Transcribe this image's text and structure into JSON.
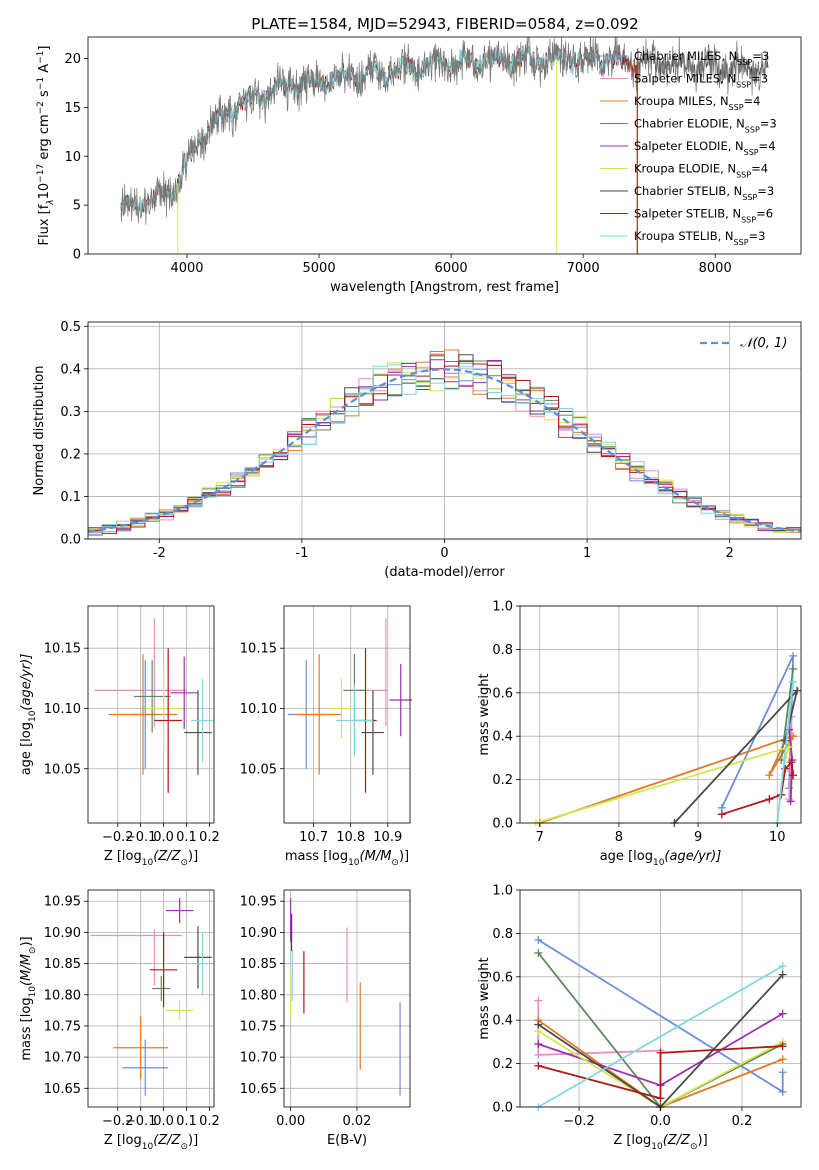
{
  "figure": {
    "title": "PLATE=1584, MJD=52943, FIBERID=0584, z=0.092"
  },
  "series": [
    {
      "label": "Chabrier MILES, N",
      "sub": "SSP",
      "tail": "=3",
      "color": "#6a8fdc"
    },
    {
      "label": "Salpeter MILES, N",
      "sub": "SSP",
      "tail": "=3",
      "color": "#e88ec4"
    },
    {
      "label": "Kroupa MILES, N",
      "sub": "SSP",
      "tail": "=4",
      "color": "#e07b2a"
    },
    {
      "label": "Chabrier ELODIE, N",
      "sub": "SSP",
      "tail": "=3",
      "color": "#5e8a5e"
    },
    {
      "label": "Salpeter ELODIE, N",
      "sub": "SSP",
      "tail": "=4",
      "color": "#9b30b0"
    },
    {
      "label": "Kroupa ELODIE, N",
      "sub": "SSP",
      "tail": "=4",
      "color": "#d4e650"
    },
    {
      "label": "Chabrier STELIB, N",
      "sub": "SSP",
      "tail": "=3",
      "color": "#4a4a4a"
    },
    {
      "label": "Salpeter STELIB, N",
      "sub": "SSP",
      "tail": "=6",
      "color": "#b01818"
    },
    {
      "label": "Kroupa STELIB, N",
      "sub": "SSP",
      "tail": "=3",
      "color": "#7fd8e0"
    }
  ],
  "chart_data": [
    {
      "id": "spectrum",
      "type": "line",
      "xlabel": "wavelength [Angstrom, rest frame]",
      "ylabel": "Flux [f",
      "ylabel_rest": "10",
      "ylabel_exp": "−17",
      "ylabel_units": " erg cm",
      "ylabel_units_exp": "−2",
      "ylabel_units2": " s",
      "ylabel_units2_exp": "−1",
      "ylabel_units3": " A",
      "ylabel_units3_exp": "−1",
      "ylabel_end": "]",
      "xlim": [
        3250,
        8650
      ],
      "ylim": [
        0,
        22.2
      ],
      "xticks": [
        4000,
        5000,
        6000,
        7000,
        8000
      ],
      "yticks": [
        0,
        5,
        10,
        15,
        20
      ],
      "x_start": 3500,
      "x_end": 8400,
      "continuum_knots": [
        [
          3500,
          4.5
        ],
        [
          3700,
          5.5
        ],
        [
          3900,
          6.5
        ],
        [
          4000,
          9.0
        ],
        [
          4100,
          12.0
        ],
        [
          4300,
          14.5
        ],
        [
          4600,
          16.5
        ],
        [
          5000,
          17.8
        ],
        [
          5500,
          18.6
        ],
        [
          6000,
          19.5
        ],
        [
          6500,
          20.0
        ],
        [
          7000,
          20.0
        ],
        [
          7400,
          19.6
        ],
        [
          8000,
          19.2
        ],
        [
          8400,
          19.0
        ]
      ],
      "model_cutoffs": [
        {
          "series": 5,
          "x": 3930
        },
        {
          "series": 5,
          "x": 6800
        },
        {
          "series": 2,
          "x": 7410
        },
        {
          "series": 7,
          "x": 7410
        }
      ]
    },
    {
      "id": "residuals",
      "type": "histogram",
      "xlabel": "(data-model)/error",
      "ylabel": "Normed distribution",
      "legend": "𝒩(0, 1)",
      "xlim": [
        -2.5,
        2.5
      ],
      "ylim": [
        0,
        0.51
      ],
      "xticks": [
        -2,
        -1,
        0,
        1,
        2
      ],
      "yticks": [
        0.0,
        0.1,
        0.2,
        0.3,
        0.4,
        0.5
      ],
      "bin_width": 0.1
    },
    {
      "id": "age_vs_Z",
      "type": "errorbar",
      "xlabel": "Z [log",
      "xlabel_sub": "10",
      "xlabel_rest": "(Z/Z",
      "xlabel_sun": "⊙",
      "xlabel_end": ")]",
      "ylabel": "age  [log",
      "ylabel_sub": "10",
      "ylabel_rest": "(age/yr)]",
      "xlim": [
        -0.33,
        0.22
      ],
      "ylim": [
        10.005,
        10.185
      ],
      "xticks": [
        -0.2,
        -0.1,
        0.0,
        0.1,
        0.2
      ],
      "xticklabels": [
        "−0.2",
        "−0.1",
        "0.0",
        "0.1",
        "0.2"
      ],
      "yticks": [
        10.05,
        10.1,
        10.15
      ],
      "points": [
        {
          "s": 0,
          "x": -0.08,
          "xerr": 0.06,
          "y": 10.095,
          "yerr": 0.045
        },
        {
          "s": 1,
          "x": -0.1,
          "xerr": 0.2,
          "y": 10.115,
          "yerr": 0.0
        },
        {
          "s": 1,
          "x": -0.04,
          "xerr": 0.0,
          "y": 10.13,
          "yerr": 0.045
        },
        {
          "s": 2,
          "x": -0.09,
          "xerr": 0.15,
          "y": 10.095,
          "yerr": 0.05
        },
        {
          "s": 3,
          "x": -0.05,
          "xerr": 0.08,
          "y": 10.11,
          "yerr": 0.03
        },
        {
          "s": 4,
          "x": 0.09,
          "xerr": 0.06,
          "y": 10.113,
          "yerr": 0.03
        },
        {
          "s": 5,
          "x": 0.0,
          "xerr": 0.08,
          "y": 10.1,
          "yerr": 0.035
        },
        {
          "s": 6,
          "x": 0.15,
          "xerr": 0.06,
          "y": 10.08,
          "yerr": 0.035
        },
        {
          "s": 7,
          "x": 0.02,
          "xerr": 0.06,
          "y": 10.09,
          "yerr": 0.06
        },
        {
          "s": 8,
          "x": 0.17,
          "xerr": 0.05,
          "y": 10.09,
          "yerr": 0.035
        }
      ]
    },
    {
      "id": "age_vs_mass",
      "type": "errorbar",
      "xlabel": "mass [log",
      "xlabel_sub": "10",
      "xlabel_rest": "(M/M",
      "xlabel_sun": "⊙",
      "xlabel_end": ")]",
      "xlim": [
        10.62,
        10.96
      ],
      "ylim": [
        10.005,
        10.185
      ],
      "xticks": [
        10.7,
        10.8,
        10.9
      ],
      "yticks": [
        10.05,
        10.1,
        10.15
      ],
      "points": [
        {
          "s": 0,
          "x": 10.68,
          "xerr": 0.05,
          "y": 10.095,
          "yerr": 0.045
        },
        {
          "s": 2,
          "x": 10.715,
          "xerr": 0.06,
          "y": 10.095,
          "yerr": 0.05
        },
        {
          "s": 1,
          "x": 10.895,
          "xerr": 0.0,
          "y": 10.13,
          "yerr": 0.045
        },
        {
          "s": 1,
          "x": 10.86,
          "xerr": 0.04,
          "y": 10.115,
          "yerr": 0.0
        },
        {
          "s": 3,
          "x": 10.81,
          "xerr": 0.03,
          "y": 10.115,
          "yerr": 0.03
        },
        {
          "s": 4,
          "x": 10.935,
          "xerr": 0.03,
          "y": 10.107,
          "yerr": 0.03
        },
        {
          "s": 5,
          "x": 10.775,
          "xerr": 0.03,
          "y": 10.1,
          "yerr": 0.025
        },
        {
          "s": 6,
          "x": 10.86,
          "xerr": 0.03,
          "y": 10.08,
          "yerr": 0.035
        },
        {
          "s": 7,
          "x": 10.84,
          "xerr": 0.03,
          "y": 10.09,
          "yerr": 0.06
        },
        {
          "s": 8,
          "x": 10.81,
          "xerr": 0.05,
          "y": 10.09,
          "yerr": 0.03
        }
      ]
    },
    {
      "id": "mass_weight_vs_age",
      "type": "line",
      "xlabel": "age  [log",
      "xlabel_sub": "10",
      "xlabel_rest": "(age/yr)]",
      "ylabel": "mass weight",
      "xlim": [
        6.75,
        10.3
      ],
      "ylim": [
        0,
        1
      ],
      "xticks": [
        7,
        8,
        9,
        10
      ],
      "yticks": [
        0.0,
        0.2,
        0.4,
        0.6,
        0.8,
        1.0
      ],
      "series_points": [
        {
          "s": 0,
          "pts": [
            [
              9.3,
              0.07
            ],
            [
              10.2,
              0.77
            ],
            [
              10.15,
              0.16
            ]
          ]
        },
        {
          "s": 1,
          "pts": [
            [
              10.15,
              0.11
            ],
            [
              10.17,
              0.24
            ],
            [
              10.18,
              0.49
            ]
          ]
        },
        {
          "s": 2,
          "pts": [
            [
              7.0,
              0.0
            ],
            [
              10.2,
              0.4
            ],
            [
              9.9,
              0.22
            ],
            [
              10.1,
              0.38
            ]
          ]
        },
        {
          "s": 3,
          "pts": [
            [
              10.2,
              0.71
            ],
            [
              10.05,
              0.29
            ]
          ]
        },
        {
          "s": 4,
          "pts": [
            [
              10.17,
              0.1
            ],
            [
              10.19,
              0.29
            ],
            [
              10.15,
              0.43
            ]
          ]
        },
        {
          "s": 5,
          "pts": [
            [
              6.95,
              0.0
            ],
            [
              10.15,
              0.35
            ],
            [
              10.1,
              0.3
            ]
          ]
        },
        {
          "s": 6,
          "pts": [
            [
              8.7,
              0.0
            ],
            [
              10.25,
              0.61
            ],
            [
              10.1,
              0.38
            ]
          ]
        },
        {
          "s": 7,
          "pts": [
            [
              9.3,
              0.04
            ],
            [
              9.9,
              0.11
            ],
            [
              10.05,
              0.13
            ],
            [
              10.1,
              0.25
            ],
            [
              10.18,
              0.28
            ],
            [
              10.2,
              0.22
            ]
          ]
        },
        {
          "s": 8,
          "pts": [
            [
              10.0,
              0.0
            ],
            [
              10.2,
              0.65
            ]
          ]
        }
      ]
    },
    {
      "id": "mass_vs_Z",
      "type": "errorbar",
      "xlabel": "Z [log",
      "xlabel_sub": "10",
      "xlabel_rest": "(Z/Z",
      "xlabel_sun": "⊙",
      "xlabel_end": ")]",
      "ylabel": "mass [log",
      "ylabel_sub": "10",
      "ylabel_rest": "(M/M",
      "ylabel_sun": "⊙",
      "ylabel_end": ")]",
      "xlim": [
        -0.33,
        0.22
      ],
      "ylim": [
        10.62,
        10.968
      ],
      "xticks": [
        -0.2,
        -0.1,
        0.0,
        0.1,
        0.2
      ],
      "xticklabels": [
        "−0.2",
        "−0.1",
        "0.0",
        "0.1",
        "0.2"
      ],
      "yticks": [
        10.65,
        10.7,
        10.75,
        10.8,
        10.85,
        10.9,
        10.95
      ],
      "points": [
        {
          "s": 0,
          "x": -0.08,
          "xerr": 0.1,
          "y": 10.683,
          "yerr": 0.045
        },
        {
          "s": 1,
          "x": -0.12,
          "xerr": 0.2,
          "y": 10.895,
          "yerr": 0.0
        },
        {
          "s": 1,
          "x": -0.04,
          "xerr": 0.0,
          "y": 10.86,
          "yerr": 0.045
        },
        {
          "s": 2,
          "x": -0.1,
          "xerr": 0.12,
          "y": 10.715,
          "yerr": 0.05
        },
        {
          "s": 3,
          "x": -0.01,
          "xerr": 0.04,
          "y": 10.81,
          "yerr": 0.02
        },
        {
          "s": 4,
          "x": 0.07,
          "xerr": 0.06,
          "y": 10.935,
          "yerr": 0.02
        },
        {
          "s": 5,
          "x": 0.07,
          "xerr": 0.06,
          "y": 10.775,
          "yerr": 0.015
        },
        {
          "s": 6,
          "x": 0.15,
          "xerr": 0.06,
          "y": 10.86,
          "yerr": 0.05
        },
        {
          "s": 7,
          "x": 0.0,
          "xerr": 0.06,
          "y": 10.84,
          "yerr": 0.06
        },
        {
          "s": 8,
          "x": 0.17,
          "xerr": 0.03,
          "y": 10.85,
          "yerr": 0.05
        }
      ]
    },
    {
      "id": "mass_vs_EBV",
      "type": "errorbar",
      "xlabel": "E(B-V)",
      "xlim": [
        -0.002,
        0.036
      ],
      "ylim": [
        10.62,
        10.968
      ],
      "xticks": [
        0.0,
        0.02
      ],
      "xticklabels": [
        "0.00",
        "0.02"
      ],
      "yticks": [
        10.65,
        10.7,
        10.75,
        10.8,
        10.85,
        10.9,
        10.95
      ],
      "points": [
        {
          "s": 0,
          "x": 0.033,
          "xerr": 0.0,
          "y": 10.713,
          "yerr": 0.075
        },
        {
          "s": 2,
          "x": 0.021,
          "xerr": 0.0,
          "y": 10.75,
          "yerr": 0.07
        },
        {
          "s": 1,
          "x": 0.017,
          "xerr": 0.0,
          "y": 10.848,
          "yerr": 0.06
        },
        {
          "s": 7,
          "x": 0.004,
          "xerr": 0.0,
          "y": 10.82,
          "yerr": 0.05
        },
        {
          "s": 4,
          "x": 0.0,
          "xerr": 0.0,
          "y": 10.92,
          "yerr": 0.035
        },
        {
          "s": 5,
          "x": 0.0,
          "xerr": 0.0,
          "y": 10.8,
          "yerr": 0.04
        },
        {
          "s": 8,
          "x": 0.0005,
          "xerr": 0.0,
          "y": 10.83,
          "yerr": 0.04
        },
        {
          "s": 6,
          "x": 0.0003,
          "xerr": 0.0,
          "y": 10.9,
          "yerr": 0.03
        }
      ]
    },
    {
      "id": "mass_weight_vs_Z",
      "type": "line",
      "xlabel": "Z [log",
      "xlabel_sub": "10",
      "xlabel_rest": "(Z/Z",
      "xlabel_sun": "⊙",
      "xlabel_end": ")]",
      "ylabel": "mass weight",
      "xlim": [
        -0.345,
        0.345
      ],
      "ylim": [
        0,
        1
      ],
      "xticks": [
        -0.2,
        0.0,
        0.2
      ],
      "xticklabels": [
        "−0.2",
        "0.0",
        "0.2"
      ],
      "yticks": [
        0.0,
        0.2,
        0.4,
        0.6,
        0.8,
        1.0
      ],
      "series_points": [
        {
          "s": 0,
          "pts": [
            [
              -0.3,
              0.77
            ],
            [
              0.3,
              0.07
            ],
            [
              0.3,
              0.16
            ]
          ]
        },
        {
          "s": 1,
          "pts": [
            [
              -0.3,
              0.49
            ],
            [
              -0.3,
              0.24
            ],
            [
              0.0,
              0.26
            ]
          ]
        },
        {
          "s": 2,
          "pts": [
            [
              -0.3,
              0.4
            ],
            [
              0.0,
              0.0
            ],
            [
              0.3,
              0.22
            ]
          ]
        },
        {
          "s": 3,
          "pts": [
            [
              -0.3,
              0.71
            ],
            [
              0.0,
              0.0
            ],
            [
              0.3,
              0.29
            ]
          ]
        },
        {
          "s": 4,
          "pts": [
            [
              -0.3,
              0.29
            ],
            [
              0.0,
              0.1
            ],
            [
              0.3,
              0.43
            ]
          ]
        },
        {
          "s": 5,
          "pts": [
            [
              -0.3,
              0.35
            ],
            [
              0.0,
              0.0
            ],
            [
              0.3,
              0.3
            ]
          ]
        },
        {
          "s": 6,
          "pts": [
            [
              -0.3,
              0.38
            ],
            [
              0.0,
              0.0
            ],
            [
              0.3,
              0.61
            ]
          ]
        },
        {
          "s": 7,
          "pts": [
            [
              -0.3,
              0.19
            ],
            [
              0.0,
              0.04
            ],
            [
              0.0,
              0.25
            ],
            [
              0.3,
              0.28
            ]
          ]
        },
        {
          "s": 8,
          "pts": [
            [
              -0.3,
              0.0
            ],
            [
              0.3,
              0.65
            ]
          ]
        }
      ]
    }
  ]
}
